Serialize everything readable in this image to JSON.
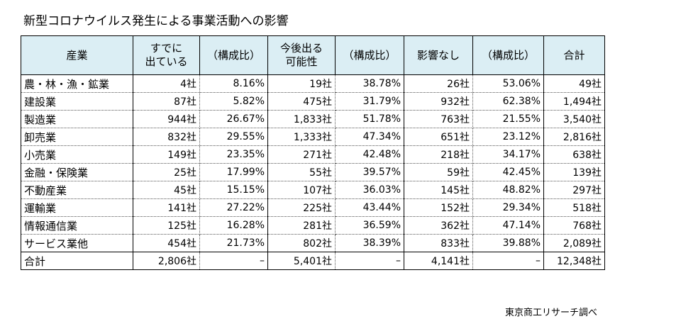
{
  "title": "新型コロナウイルス発生による事業活動への影響",
  "headers": {
    "industry": "産業",
    "already_l1": "すでに",
    "already_l2": "出ている",
    "ratio1": "（構成比）",
    "possible_l1": "今後出る",
    "possible_l2": "可能性",
    "ratio2": "（構成比）",
    "none": "影響なし",
    "ratio3": "（構成比）",
    "total": "合計"
  },
  "rows": [
    {
      "industry": "農・林・漁・鉱業",
      "already": "4社",
      "already_pct": "8.16%",
      "possible": "19社",
      "possible_pct": "38.78%",
      "none": "26社",
      "none_pct": "53.06%",
      "total": "49社"
    },
    {
      "industry": "建設業",
      "already": "87社",
      "already_pct": "5.82%",
      "possible": "475社",
      "possible_pct": "31.79%",
      "none": "932社",
      "none_pct": "62.38%",
      "total": "1,494社"
    },
    {
      "industry": "製造業",
      "already": "944社",
      "already_pct": "26.67%",
      "possible": "1,833社",
      "possible_pct": "51.78%",
      "none": "763社",
      "none_pct": "21.55%",
      "total": "3,540社"
    },
    {
      "industry": "卸売業",
      "already": "832社",
      "already_pct": "29.55%",
      "possible": "1,333社",
      "possible_pct": "47.34%",
      "none": "651社",
      "none_pct": "23.12%",
      "total": "2,816社"
    },
    {
      "industry": "小売業",
      "already": "149社",
      "already_pct": "23.35%",
      "possible": "271社",
      "possible_pct": "42.48%",
      "none": "218社",
      "none_pct": "34.17%",
      "total": "638社"
    },
    {
      "industry": "金融・保険業",
      "already": "25社",
      "already_pct": "17.99%",
      "possible": "55社",
      "possible_pct": "39.57%",
      "none": "59社",
      "none_pct": "42.45%",
      "total": "139社"
    },
    {
      "industry": "不動産業",
      "already": "45社",
      "already_pct": "15.15%",
      "possible": "107社",
      "possible_pct": "36.03%",
      "none": "145社",
      "none_pct": "48.82%",
      "total": "297社"
    },
    {
      "industry": "運輸業",
      "already": "141社",
      "already_pct": "27.22%",
      "possible": "225社",
      "possible_pct": "43.44%",
      "none": "152社",
      "none_pct": "29.34%",
      "total": "518社"
    },
    {
      "industry": "情報通信業",
      "already": "125社",
      "already_pct": "16.28%",
      "possible": "281社",
      "possible_pct": "36.59%",
      "none": "362社",
      "none_pct": "47.14%",
      "total": "768社"
    },
    {
      "industry": "サービス業他",
      "already": "454社",
      "already_pct": "21.73%",
      "possible": "802社",
      "possible_pct": "38.39%",
      "none": "833社",
      "none_pct": "39.88%",
      "total": "2,089社"
    }
  ],
  "total_row": {
    "industry": "合計",
    "already": "2,806社",
    "already_pct": "–",
    "possible": "5,401社",
    "possible_pct": "–",
    "none": "4,141社",
    "none_pct": "–",
    "total": "12,348社"
  },
  "source": "東京商工リサーチ調べ"
}
